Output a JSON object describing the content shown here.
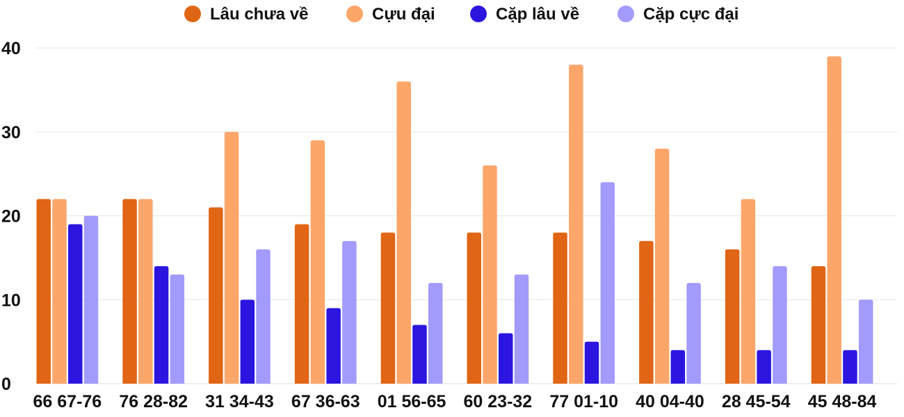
{
  "chart_data": {
    "type": "bar",
    "categories": [
      "66 67-76",
      "76 28-82",
      "31 34-43",
      "67 36-63",
      "01 56-65",
      "60 23-32",
      "77 01-10",
      "40 04-40",
      "28 45-54",
      "45 48-84"
    ],
    "series": [
      {
        "name": "Lâu chưa về",
        "color": "#e06514",
        "values": [
          22,
          22,
          21,
          19,
          18,
          18,
          18,
          17,
          16,
          14
        ]
      },
      {
        "name": "Cựu đại",
        "color": "#fca66a",
        "values": [
          22,
          22,
          30,
          29,
          36,
          26,
          38,
          28,
          22,
          39
        ]
      },
      {
        "name": "Cặp lâu về",
        "color": "#2b16e0",
        "values": [
          19,
          14,
          10,
          9,
          7,
          6,
          5,
          4,
          4,
          4
        ]
      },
      {
        "name": "Cặp cực đại",
        "color": "#a29bfb",
        "values": [
          20,
          13,
          16,
          17,
          12,
          13,
          24,
          12,
          14,
          10
        ]
      }
    ],
    "yticks": [
      "0",
      "10",
      "20",
      "30",
      "40"
    ],
    "ylim": [
      0,
      40
    ],
    "grid": true,
    "legend_position": "top-center"
  }
}
